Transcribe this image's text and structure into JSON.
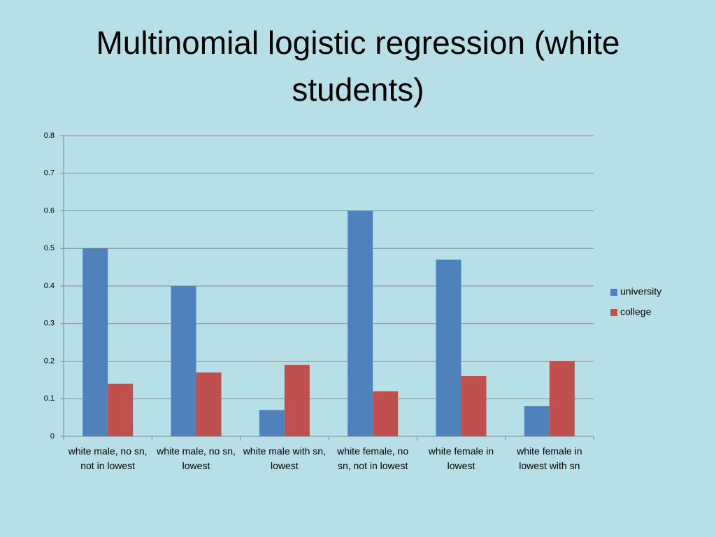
{
  "chart_data": {
    "type": "bar",
    "title": "Multinomial logistic regression (white students)",
    "categories": [
      "white male, no sn, not in lowest",
      "white male, no sn, lowest",
      "white male with sn, lowest",
      "white female, no sn, not in lowest",
      "white female in lowest",
      "white female in lowest with sn"
    ],
    "series": [
      {
        "name": "university",
        "color": "#4f81bd",
        "values": [
          0.5,
          0.4,
          0.07,
          0.6,
          0.47,
          0.08
        ]
      },
      {
        "name": "college",
        "color": "#c0504d",
        "values": [
          0.14,
          0.17,
          0.19,
          0.12,
          0.16,
          0.2
        ]
      }
    ],
    "ylim": [
      0,
      0.8
    ],
    "yticks": [
      0,
      0.1,
      0.2,
      0.3,
      0.4,
      0.5,
      0.6,
      0.7,
      0.8
    ],
    "grid": true,
    "legend": "right"
  }
}
